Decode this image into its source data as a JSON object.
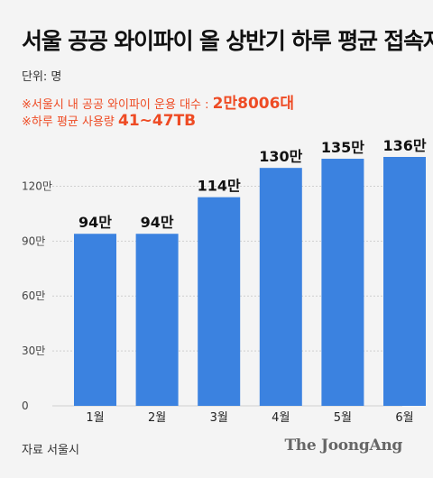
{
  "title": "서울 공공 와이파이 올 상반기 하루 평균 접속자",
  "unit_label": "단위: 명",
  "notes": [
    {
      "text": "※서울시 내 공공 와이파이 운용 대수 : ",
      "highlight": "2만8006대"
    },
    {
      "text": "※하루 평균 사용량 ",
      "highlight": "41~47TB"
    }
  ],
  "source": "자료 서울시",
  "logo": "The JoongAng",
  "colors": {
    "bar": "#3b82e0",
    "note": "#ee4b24",
    "grid": "#cfcfcf",
    "background": "#f4f4f4"
  },
  "chart_data": {
    "type": "bar",
    "categories": [
      "1월",
      "2월",
      "3월",
      "4월",
      "5월",
      "6월"
    ],
    "values": [
      94,
      94,
      114,
      130,
      135,
      136
    ],
    "value_labels": [
      "94만",
      "94만",
      "114만",
      "130만",
      "135만",
      "136만"
    ],
    "y_ticks": [
      0,
      30,
      60,
      90,
      120
    ],
    "y_tick_labels": [
      "0",
      "30만",
      "60만",
      "90만",
      "120만"
    ],
    "ylim": [
      0,
      136
    ],
    "grid": true,
    "title": "서울 공공 와이파이 올 상반기 하루 평균 접속자",
    "xlabel": "",
    "ylabel": ""
  }
}
